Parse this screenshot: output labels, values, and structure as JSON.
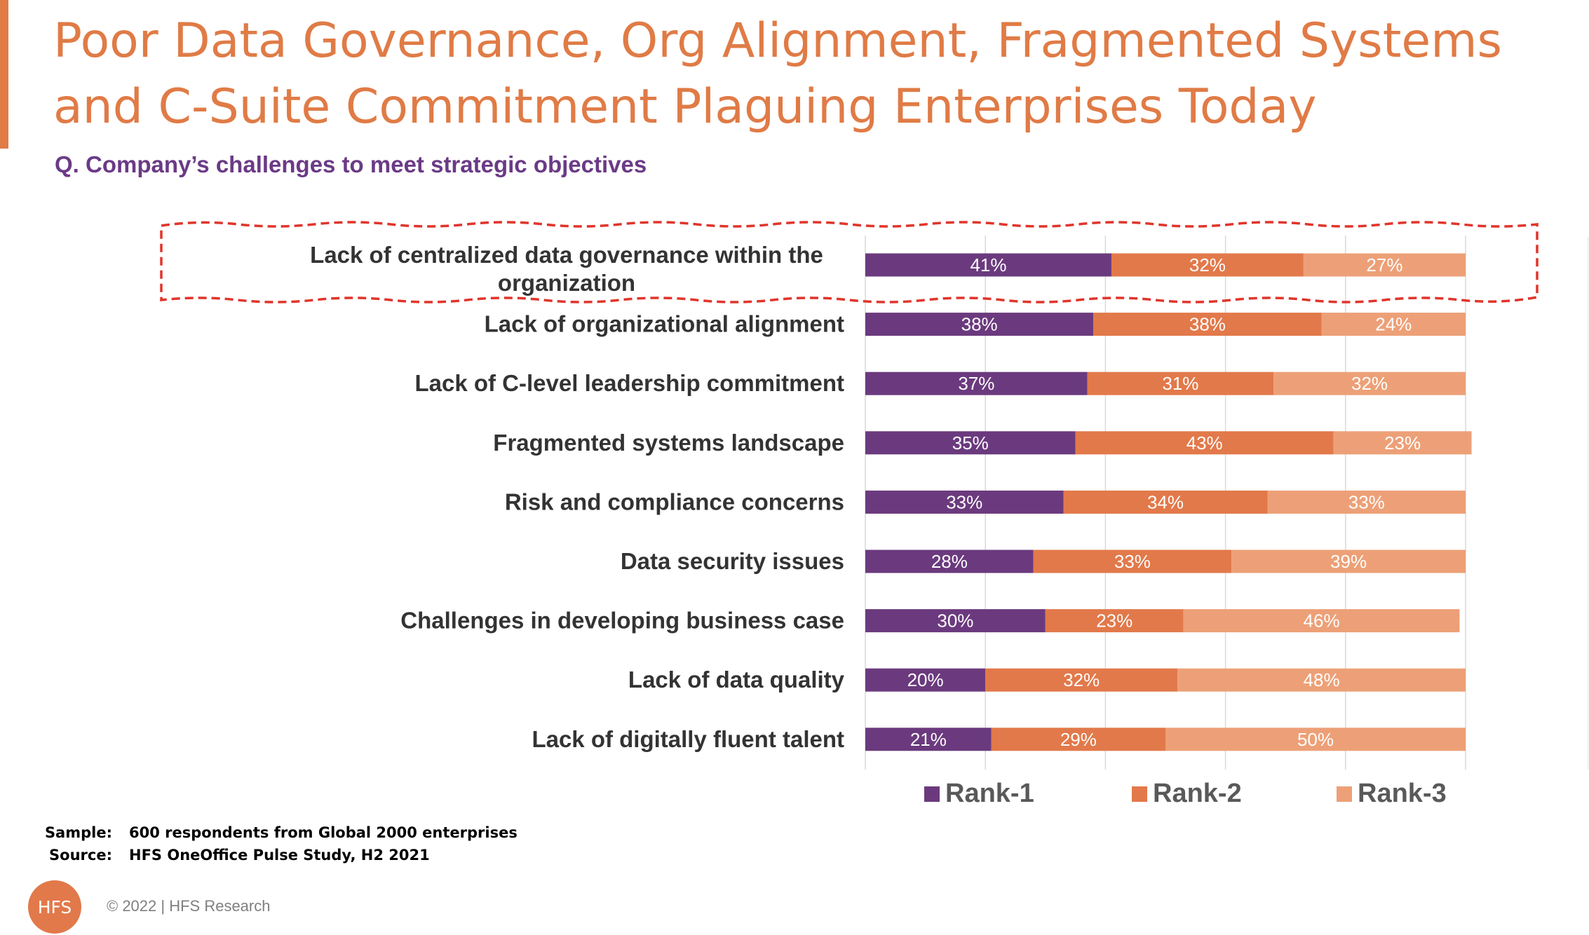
{
  "title": "Poor Data Governance, Org Alignment, Fragmented Systems and C-Suite Commitment Plaguing Enterprises Today",
  "subtitle": "Q. Company’s challenges to meet strategic objectives",
  "colors": {
    "title": "#E07B46",
    "subtitle": "#6B3A86",
    "rank1": "#6B3A7E",
    "rank2": "#E2794A",
    "rank3": "#EDA077",
    "highlight": "#E0352B",
    "logo": "#E2794A"
  },
  "chart_data": {
    "type": "bar",
    "orientation": "horizontal",
    "stacked": true,
    "categories": [
      "Lack of centralized data governance within the organization",
      "Lack of organizational alignment",
      "Lack of C-level leadership commitment",
      "Fragmented systems landscape",
      "Risk and compliance concerns",
      "Data security issues",
      "Challenges in developing business case",
      "Lack of data quality",
      "Lack of digitally fluent talent"
    ],
    "series": [
      {
        "name": "Rank-1",
        "values": [
          41,
          38,
          37,
          35,
          33,
          28,
          30,
          20,
          21
        ]
      },
      {
        "name": "Rank-2",
        "values": [
          32,
          38,
          31,
          43,
          34,
          33,
          23,
          32,
          29
        ]
      },
      {
        "name": "Rank-3",
        "values": [
          27,
          24,
          32,
          23,
          33,
          39,
          46,
          48,
          50
        ]
      }
    ],
    "value_suffix": "%",
    "xlim": [
      0,
      100
    ],
    "grid": true,
    "legend_position": "bottom",
    "highlighted_category": "Lack of centralized data governance within the organization"
  },
  "footer": {
    "sample_label": "Sample:",
    "sample_text": "600 respondents from Global 2000 enterprises",
    "source_label": "Source:",
    "source_text": "HFS OneOffice Pulse Study, H2 2021",
    "logo_text": "HFS",
    "copyright": "© 2022 | HFS Research"
  }
}
